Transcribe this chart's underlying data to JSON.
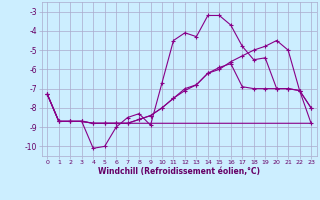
{
  "xlabel": "Windchill (Refroidissement éolien,°C)",
  "background_color": "#cceeff",
  "grid_color": "#aaaacc",
  "line_color": "#880088",
  "x": [
    0,
    1,
    2,
    3,
    4,
    5,
    6,
    7,
    8,
    9,
    10,
    11,
    12,
    13,
    14,
    15,
    16,
    17,
    18,
    19,
    20,
    21,
    22,
    23
  ],
  "line1": [
    -7.3,
    -8.7,
    -8.7,
    -8.7,
    -10.1,
    -10.0,
    -9.0,
    -8.5,
    -8.3,
    -8.9,
    -6.7,
    -4.5,
    -4.1,
    -4.3,
    -3.2,
    -3.2,
    -3.7,
    -4.8,
    -5.5,
    -5.4,
    -7.0,
    -7.0,
    -7.1,
    -8.0
  ],
  "line2": [
    -7.3,
    -8.7,
    -8.7,
    -8.7,
    -8.8,
    -8.8,
    -8.8,
    -8.8,
    -8.6,
    -8.4,
    -8.0,
    -7.5,
    -7.1,
    -6.8,
    -6.2,
    -6.0,
    -5.6,
    -5.3,
    -5.0,
    -4.8,
    -4.5,
    -5.0,
    -7.1,
    -8.0
  ],
  "line3": [
    -7.3,
    -8.7,
    -8.7,
    -8.7,
    -8.8,
    -8.8,
    -8.8,
    -8.8,
    -8.6,
    -8.4,
    -8.0,
    -7.5,
    -7.0,
    -6.8,
    -6.2,
    -5.9,
    -5.7,
    -6.9,
    -7.0,
    -7.0,
    -7.0,
    -7.0,
    -7.1,
    -8.8
  ],
  "line4": [
    -7.3,
    -8.7,
    -8.7,
    -8.7,
    -8.8,
    -8.8,
    -8.8,
    -8.8,
    -8.8,
    -8.8,
    -8.8,
    -8.8,
    -8.8,
    -8.8,
    -8.8,
    -8.8,
    -8.8,
    -8.8,
    -8.8,
    -8.8,
    -8.8,
    -8.8,
    -8.8,
    -8.8
  ],
  "ylim": [
    -10.5,
    -2.5
  ],
  "xlim": [
    -0.5,
    23.5
  ],
  "yticks": [
    -10,
    -9,
    -8,
    -7,
    -6,
    -5,
    -4,
    -3
  ],
  "xticks": [
    0,
    1,
    2,
    3,
    4,
    5,
    6,
    7,
    8,
    9,
    10,
    11,
    12,
    13,
    14,
    15,
    16,
    17,
    18,
    19,
    20,
    21,
    22,
    23
  ]
}
